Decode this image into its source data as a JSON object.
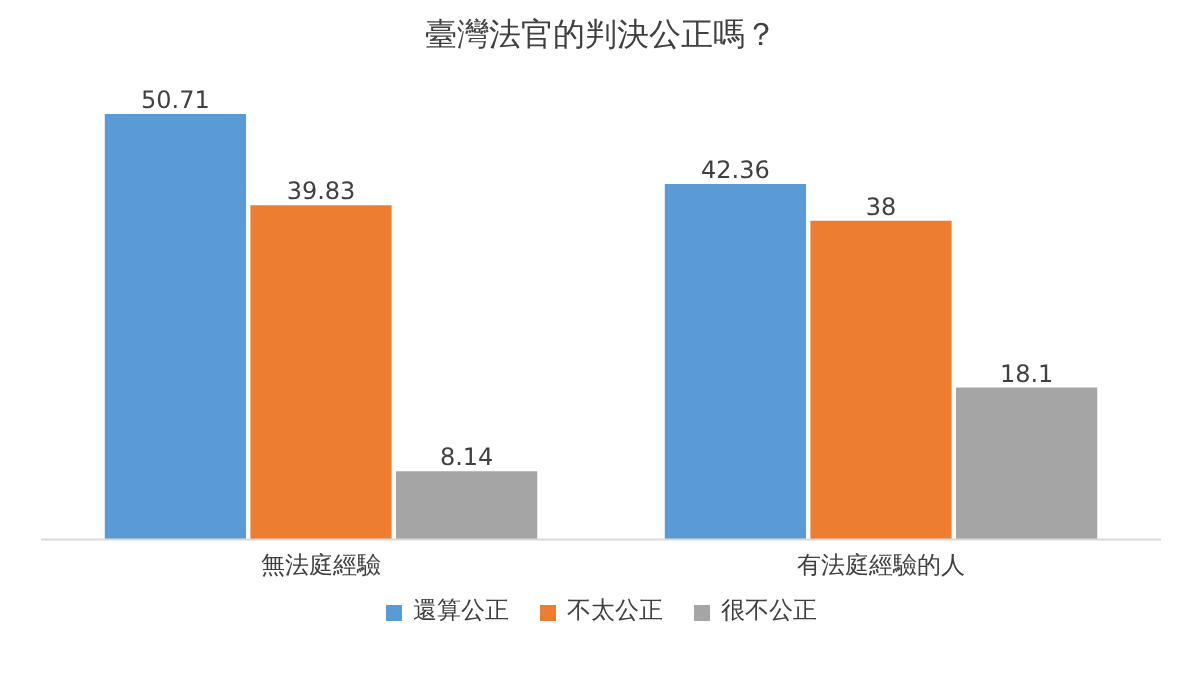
{
  "chart_data": {
    "type": "bar",
    "title": "臺灣法官的判決公正嗎？",
    "categories": [
      "無法庭經驗",
      "有法庭經驗的人"
    ],
    "series": [
      {
        "name": "還算公正",
        "color": "#5b9bd5",
        "values": [
          50.71,
          42.36
        ]
      },
      {
        "name": "不太公正",
        "color": "#ed7d31",
        "values": [
          39.83,
          38
        ]
      },
      {
        "name": "很不公正",
        "color": "#a5a5a5",
        "values": [
          8.14,
          18.1
        ]
      }
    ],
    "data_labels": true,
    "legend": "bottom"
  }
}
